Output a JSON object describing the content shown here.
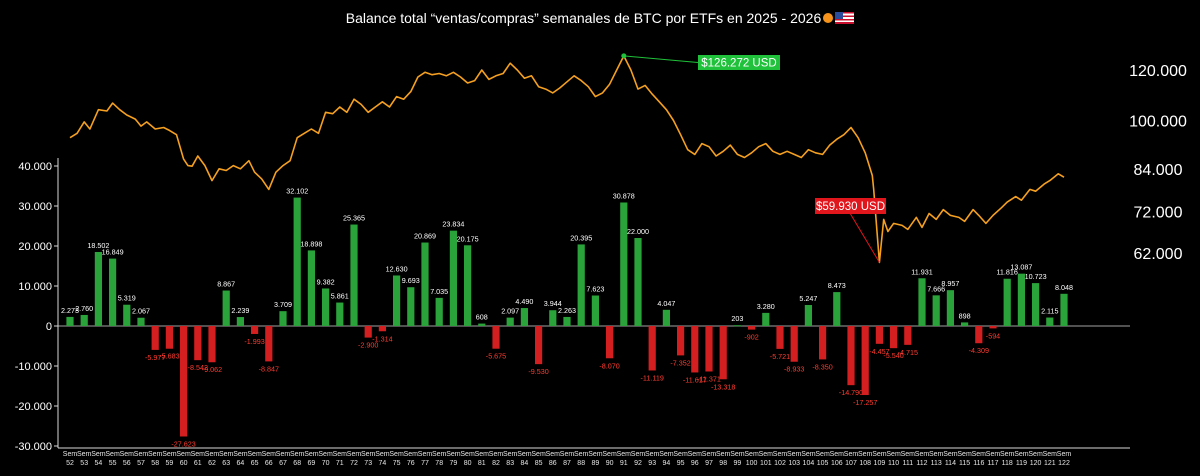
{
  "title": "Balance total “ventas/compras” semanales de BTC por ETFs en 2025 - 2026",
  "icons": [
    "bitcoin-icon",
    "us-flag-icon"
  ],
  "colors": {
    "positive": "#2aa33a",
    "negative": "#d31f1f",
    "price": "#f5a020",
    "background": "#000000",
    "ath_label": "#1fc23a",
    "low_label": "#e0161c"
  },
  "chart_data": [
    {
      "type": "bar",
      "x_label_prefix": "Sem",
      "weeks": [
        52,
        53,
        54,
        55,
        56,
        57,
        58,
        59,
        60,
        61,
        62,
        63,
        64,
        65,
        66,
        67,
        68,
        69,
        70,
        71,
        72,
        73,
        74,
        75,
        76,
        77,
        78,
        79,
        80,
        81,
        82,
        83,
        84,
        85,
        86,
        87,
        88,
        89,
        90,
        91,
        92,
        93,
        94,
        95,
        96,
        97,
        98,
        99,
        100,
        101,
        102,
        103,
        104,
        105,
        106,
        107,
        108,
        109,
        110,
        111,
        112,
        113,
        114,
        115,
        116,
        117,
        118,
        119,
        120,
        121,
        122
      ],
      "values": [
        2273,
        2760,
        18502,
        16849,
        5319,
        2067,
        -5977,
        -5683,
        -27623,
        -8542,
        -9062,
        8867,
        2239,
        -1993,
        -8847,
        3709,
        32102,
        18898,
        9382,
        5861,
        25365,
        -2900,
        -1314,
        12630,
        9693,
        20869,
        7035,
        23834,
        20175,
        608,
        -5675,
        2097,
        4490,
        -9530,
        3944,
        2263,
        20395,
        7623,
        -8070,
        30878,
        22000,
        -11119,
        4047,
        -7352,
        -11617,
        -11371,
        -13318,
        203,
        -902,
        3280,
        -5721,
        -8933,
        5247,
        -8350,
        8473,
        -14790,
        -17257,
        -4457,
        -5540,
        -4715,
        11931,
        7666,
        8957,
        898,
        -4309,
        -594,
        11816,
        13087,
        10723,
        2115,
        8048
      ],
      "labels": [
        "2.273",
        "2.760",
        "18.502",
        "16.849",
        "5.319",
        "2.067",
        "-5.977",
        "-5.683",
        "-27.623",
        "-8.542",
        "-9.062",
        "8.867",
        "2.239",
        "-1.993",
        "-8.847",
        "3.709",
        "32.102",
        "18.898",
        "9.382",
        "5.861",
        "25.365",
        "-2.900",
        "-1.314",
        "12.630",
        "9.693",
        "20.869",
        "7.035",
        "23.834",
        "20.175",
        "608",
        "-5.675",
        "2.097",
        "4.490",
        "-9.530",
        "3.944",
        "2.263",
        "20.395",
        "7.623",
        "-8.070",
        "30.878",
        "22.000",
        "-11.119",
        "4.047",
        "-7.352",
        "-11.617",
        "-11.371",
        "-13.318",
        "203",
        "-902",
        "3.280",
        "-5.721",
        "-8.933",
        "5.247",
        "-8.350",
        "8.473",
        "-14.790",
        "-17.257",
        "-4.457",
        "-5.540",
        "-4.715",
        "11.931",
        "7.666",
        "8.957",
        "898",
        "-4.309",
        "-594",
        "11.816",
        "13.087",
        "10.723",
        "2.115",
        "8.048"
      ],
      "ylim": [
        -30000,
        40000
      ],
      "yticks": [
        40000,
        30000,
        20000,
        10000,
        0,
        -10000,
        -20000,
        -30000
      ],
      "ytick_labels": [
        "40.000",
        "30.000",
        "20.000",
        "10.000",
        "0",
        "-10.000",
        "-20.000",
        "-30.000"
      ],
      "grid": false
    },
    {
      "type": "line",
      "series_name": "",
      "y_scale": "log",
      "ylim": [
        58000,
        140000
      ],
      "yticks": [
        120000,
        100000,
        84000,
        72000,
        62000
      ],
      "ytick_labels": [
        "120.000",
        "100.000",
        "84.000",
        "72.000",
        "62.000"
      ],
      "anchors_week_price": [
        [
          52,
          94000
        ],
        [
          52.5,
          95500
        ],
        [
          53,
          99500
        ],
        [
          53.4,
          97000
        ],
        [
          54,
          104000
        ],
        [
          54.6,
          103500
        ],
        [
          55,
          106500
        ],
        [
          55.5,
          104000
        ],
        [
          56,
          102000
        ],
        [
          56.6,
          100500
        ],
        [
          57,
          98000
        ],
        [
          57.4,
          99500
        ],
        [
          58,
          97000
        ],
        [
          58.6,
          97500
        ],
        [
          59,
          96500
        ],
        [
          59.5,
          95000
        ],
        [
          60,
          87000
        ],
        [
          60.3,
          85000
        ],
        [
          60.6,
          84800
        ],
        [
          61,
          88000
        ],
        [
          61.5,
          85000
        ],
        [
          62,
          80500
        ],
        [
          62.5,
          84000
        ],
        [
          63,
          83500
        ],
        [
          63.5,
          85000
        ],
        [
          64,
          84000
        ],
        [
          64.6,
          86500
        ],
        [
          65,
          83000
        ],
        [
          65.5,
          81000
        ],
        [
          66,
          78000
        ],
        [
          66.5,
          83000
        ],
        [
          67,
          85000
        ],
        [
          67.5,
          86500
        ],
        [
          68,
          94000
        ],
        [
          68.5,
          95500
        ],
        [
          69,
          97000
        ],
        [
          69.5,
          95500
        ],
        [
          70,
          103000
        ],
        [
          70.5,
          102500
        ],
        [
          71,
          105000
        ],
        [
          71.5,
          103000
        ],
        [
          72,
          108000
        ],
        [
          72.5,
          106000
        ],
        [
          73,
          103000
        ],
        [
          73.5,
          105000
        ],
        [
          74,
          107000
        ],
        [
          74.5,
          105000
        ],
        [
          75,
          109000
        ],
        [
          75.5,
          108000
        ],
        [
          76,
          111000
        ],
        [
          76.5,
          117000
        ],
        [
          77,
          119000
        ],
        [
          77.5,
          118000
        ],
        [
          78,
          118500
        ],
        [
          78.5,
          117500
        ],
        [
          79,
          119000
        ],
        [
          79.5,
          117000
        ],
        [
          80,
          114500
        ],
        [
          80.5,
          115500
        ],
        [
          81,
          120000
        ],
        [
          81.5,
          116000
        ],
        [
          82,
          117500
        ],
        [
          82.5,
          118500
        ],
        [
          83,
          123000
        ],
        [
          83.5,
          120000
        ],
        [
          84,
          116500
        ],
        [
          84.5,
          117500
        ],
        [
          85,
          113000
        ],
        [
          85.5,
          112000
        ],
        [
          86,
          110500
        ],
        [
          86.5,
          112500
        ],
        [
          87,
          115000
        ],
        [
          87.5,
          117500
        ],
        [
          88,
          115500
        ],
        [
          88.5,
          113000
        ],
        [
          89,
          109000
        ],
        [
          89.5,
          110500
        ],
        [
          90,
          114000
        ],
        [
          90.5,
          120000
        ],
        [
          91,
          126272
        ],
        [
          91.5,
          120000
        ],
        [
          92,
          112000
        ],
        [
          92.5,
          113500
        ],
        [
          93,
          110000
        ],
        [
          93.5,
          107000
        ],
        [
          94,
          104000
        ],
        [
          94.5,
          100000
        ],
        [
          95,
          95000
        ],
        [
          95.5,
          90000
        ],
        [
          96,
          88500
        ],
        [
          96.5,
          92000
        ],
        [
          97,
          91000
        ],
        [
          97.5,
          88000
        ],
        [
          98,
          89500
        ],
        [
          98.5,
          91500
        ],
        [
          99,
          88500
        ],
        [
          99.5,
          87500
        ],
        [
          100,
          89000
        ],
        [
          100.5,
          91000
        ],
        [
          101,
          92000
        ],
        [
          101.5,
          89500
        ],
        [
          102,
          88500
        ],
        [
          102.5,
          89500
        ],
        [
          103,
          88500
        ],
        [
          103.5,
          87500
        ],
        [
          104,
          90000
        ],
        [
          104.5,
          89000
        ],
        [
          105,
          88500
        ],
        [
          105.5,
          91500
        ],
        [
          106,
          93500
        ],
        [
          106.5,
          95000
        ],
        [
          107,
          97500
        ],
        [
          107.5,
          94000
        ],
        [
          108,
          89000
        ],
        [
          108.5,
          82000
        ],
        [
          108.6,
          78000
        ],
        [
          109,
          59930
        ],
        [
          109.3,
          70000
        ],
        [
          109.6,
          67000
        ],
        [
          110,
          69000
        ],
        [
          110.6,
          68500
        ],
        [
          111,
          67500
        ],
        [
          111.6,
          70500
        ],
        [
          112,
          68000
        ],
        [
          112.5,
          71500
        ],
        [
          113,
          70000
        ],
        [
          113.5,
          72500
        ],
        [
          114,
          71000
        ],
        [
          114.6,
          70500
        ],
        [
          115,
          69500
        ],
        [
          115.6,
          72500
        ],
        [
          116,
          71000
        ],
        [
          116.5,
          69000
        ],
        [
          117,
          71000
        ],
        [
          117.6,
          73000
        ],
        [
          118,
          74500
        ],
        [
          118.6,
          76000
        ],
        [
          119,
          75000
        ],
        [
          119.6,
          78000
        ],
        [
          120,
          77500
        ],
        [
          120.6,
          79500
        ],
        [
          121,
          80500
        ],
        [
          121.6,
          82500
        ],
        [
          122,
          81500
        ]
      ],
      "annotations": [
        {
          "label": "$126.272 USD",
          "week": 91,
          "price": 126272,
          "kind": "ath"
        },
        {
          "label": "$59.930 USD",
          "week": 109,
          "price": 59930,
          "kind": "low"
        }
      ]
    }
  ]
}
